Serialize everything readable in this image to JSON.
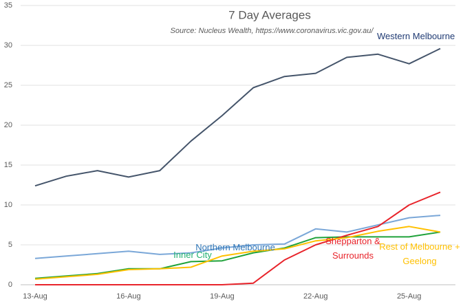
{
  "chart_data": {
    "type": "line",
    "title": "7 Day Averages",
    "subtitle": "Source: Nucleus Wealth, https://www.coronavirus.vic.gov.au/",
    "categories": [
      "13-Aug",
      null,
      null,
      "16-Aug",
      null,
      null,
      "19-Aug",
      null,
      null,
      "22-Aug",
      null,
      null,
      "25-Aug",
      null
    ],
    "ylim": [
      0,
      35
    ],
    "yticks": [
      0,
      5,
      10,
      15,
      20,
      25,
      30,
      35
    ],
    "grid": true,
    "series": [
      {
        "name": "Western Melbourne",
        "color": "#44546a",
        "label_color": "#1f3a73",
        "values": [
          12.4,
          13.6,
          14.3,
          13.5,
          14.3,
          18.0,
          21.2,
          24.7,
          26.1,
          26.5,
          28.5,
          28.9,
          27.7,
          29.6
        ]
      },
      {
        "name": "Northern Melbourne",
        "color": "#7aa7d8",
        "label_color": "#2e75b6",
        "values": [
          3.3,
          3.6,
          3.9,
          4.2,
          3.8,
          4.0,
          4.6,
          5.0,
          5.1,
          7.0,
          6.6,
          7.5,
          8.4,
          8.7
        ]
      },
      {
        "name": "Inner City",
        "color": "#1fa23a",
        "label_color": "#20b070",
        "values": [
          0.8,
          1.1,
          1.4,
          2.0,
          2.0,
          2.9,
          3.0,
          4.0,
          4.6,
          5.9,
          6.0,
          6.0,
          6.0,
          6.6
        ]
      },
      {
        "name": "Shepparton & Surrounds",
        "color": "#e8232a",
        "label_color": "#e8232a",
        "values": [
          0,
          0,
          0,
          0,
          0,
          0,
          0,
          0.2,
          3.1,
          5.0,
          6.2,
          7.3,
          10.0,
          11.6
        ]
      },
      {
        "name": "Rest of Melbourne + Geelong",
        "color": "#ffc000",
        "label_color": "#ffc000",
        "values": [
          0.7,
          1.0,
          1.3,
          1.9,
          2.0,
          2.2,
          3.6,
          4.2,
          4.5,
          5.5,
          5.9,
          6.7,
          7.3,
          6.6
        ]
      }
    ]
  }
}
